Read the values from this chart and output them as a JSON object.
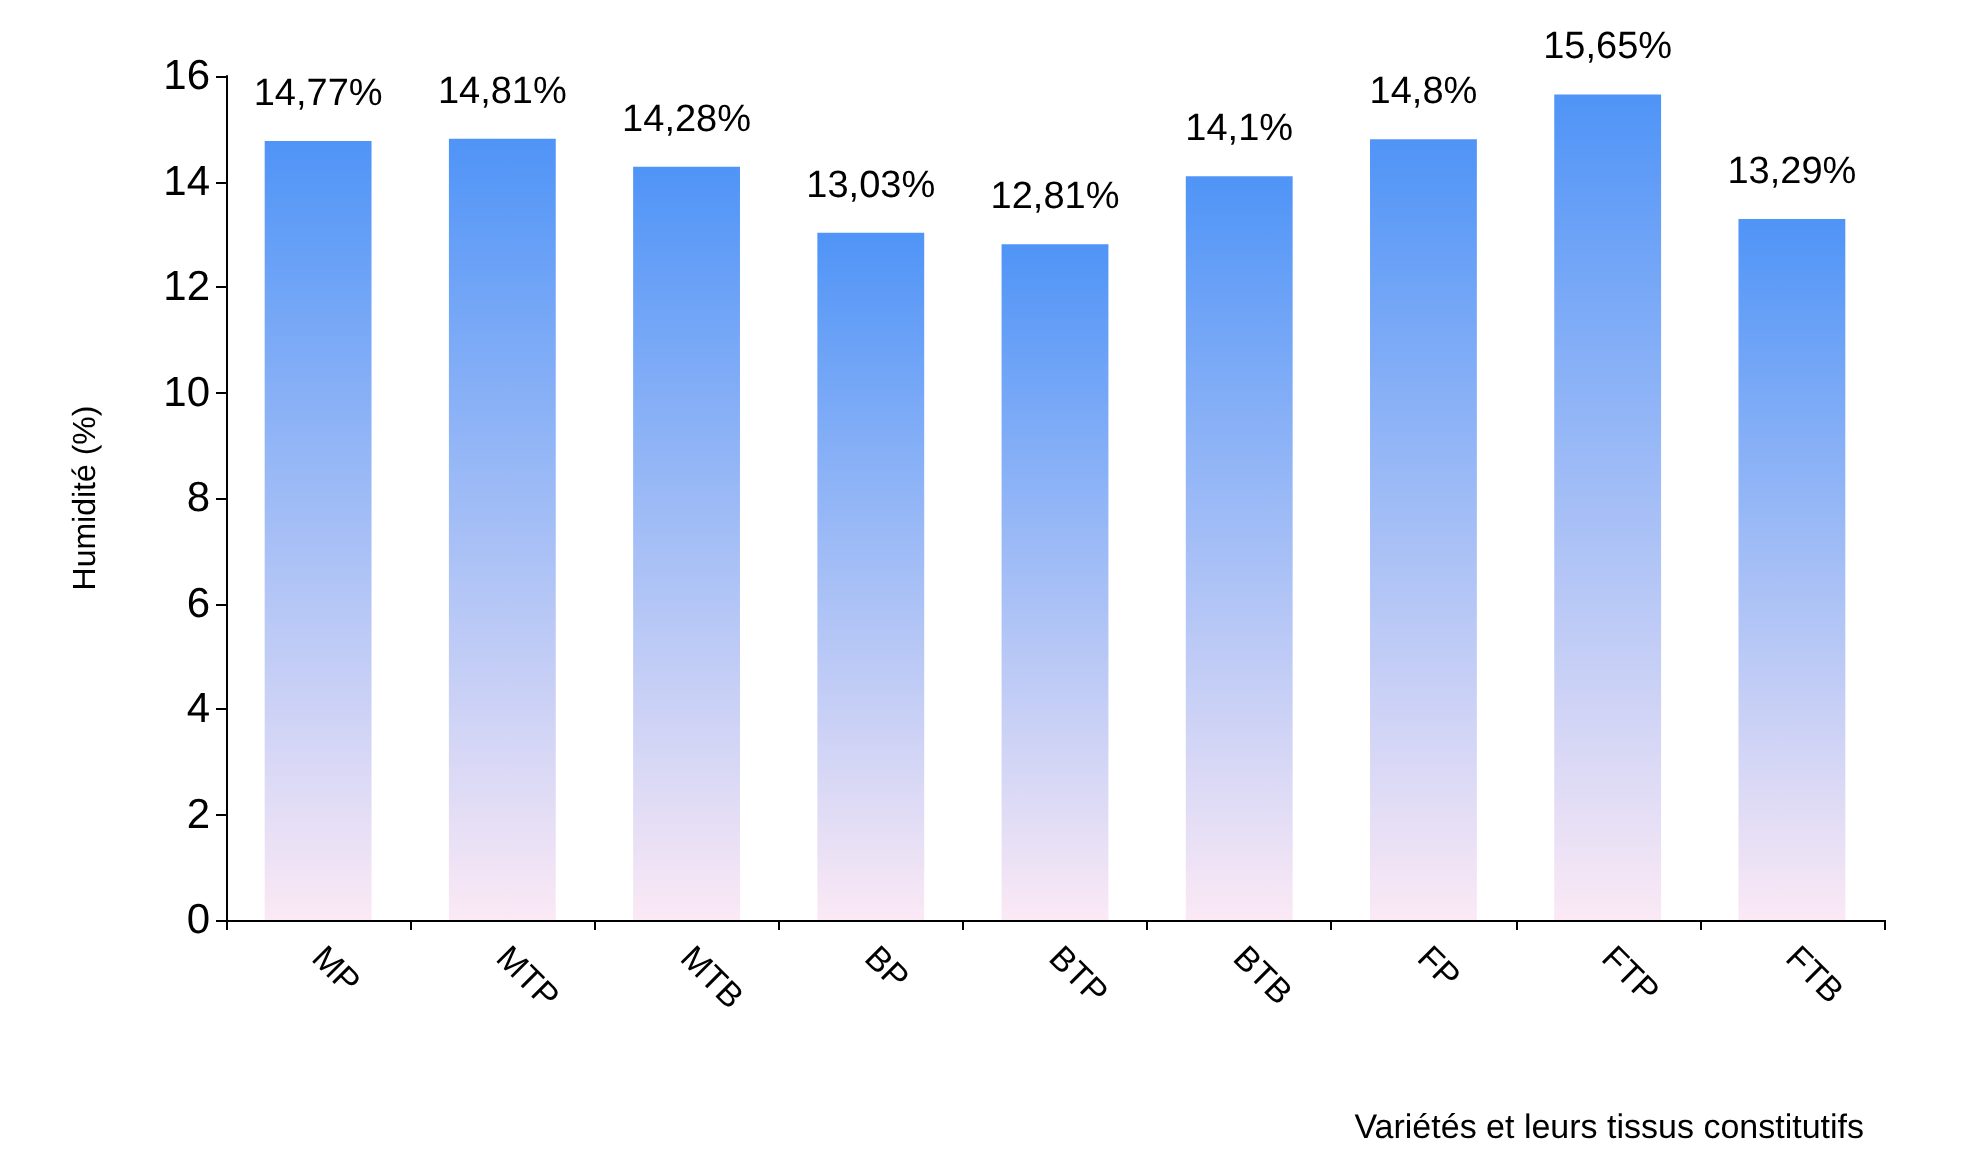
{
  "chart_data": {
    "type": "bar",
    "ylabel": "Humidité (%)",
    "xlabel": "Variétés et leurs tissus constitutifs",
    "categories": [
      "MP",
      "MTP",
      "MTB",
      "BP",
      "BTP",
      "BTB",
      "FP",
      "FTP",
      "FTB"
    ],
    "values": [
      14.77,
      14.81,
      14.28,
      13.03,
      12.81,
      14.1,
      14.8,
      15.65,
      13.29
    ],
    "value_labels": [
      "14,77%",
      "14,81%",
      "14,28%",
      "13,03%",
      "12,81%",
      "14,1%",
      "14,8%",
      "15,65%",
      "13,29%"
    ],
    "color": "#4f94f7",
    "ylim": [
      0,
      16
    ],
    "yticks": [
      0,
      2,
      4,
      6,
      8,
      10,
      12,
      14,
      16
    ],
    "grid": false
  }
}
